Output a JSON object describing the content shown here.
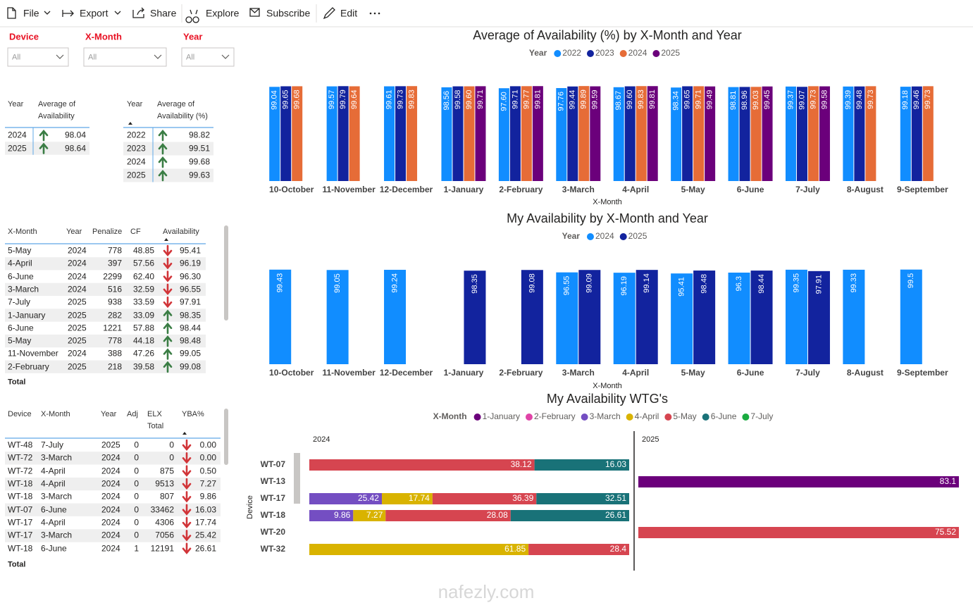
{
  "toolbar": {
    "items": [
      "File",
      "Export",
      "Share",
      "Explore",
      "Subscribe",
      "Edit"
    ]
  },
  "slicers": [
    {
      "label": "Device",
      "value": "All"
    },
    {
      "label": "X-Month",
      "value": "All"
    },
    {
      "label": "Year",
      "value": "All"
    }
  ],
  "tables": [
    {
      "columns": [
        "Year",
        "Average of Availability"
      ],
      "rows": [
        [
          "2024",
          "98.04"
        ],
        [
          "2025",
          "98.64"
        ]
      ],
      "arrows": [
        "up",
        "up"
      ]
    },
    {
      "columns": [
        "Year",
        "Average of Availability (%)"
      ],
      "rows": [
        [
          "2022",
          "98.82"
        ],
        [
          "2023",
          "99.51"
        ],
        [
          "2024",
          "99.68"
        ],
        [
          "2025",
          "99.63"
        ]
      ],
      "arrows": [
        "up",
        "up",
        "up",
        "up"
      ]
    },
    {
      "columns": [
        "X-Month",
        "Year",
        "Penalize",
        "CF",
        "Availability"
      ],
      "rows": [
        [
          "5-May",
          "2024",
          "778",
          "48.85",
          "95.41"
        ],
        [
          "4-April",
          "2024",
          "397",
          "57.56",
          "96.19"
        ],
        [
          "6-June",
          "2024",
          "2299",
          "62.40",
          "96.30"
        ],
        [
          "3-March",
          "2024",
          "516",
          "32.59",
          "96.55"
        ],
        [
          "7-July",
          "2025",
          "938",
          "33.59",
          "97.91"
        ],
        [
          "1-January",
          "2025",
          "282",
          "33.09",
          "98.35"
        ],
        [
          "6-June",
          "2025",
          "1221",
          "57.88",
          "98.44"
        ],
        [
          "5-May",
          "2025",
          "778",
          "44.18",
          "98.48"
        ],
        [
          "11-November",
          "2024",
          "388",
          "47.26",
          "99.05"
        ],
        [
          "2-February",
          "2025",
          "218",
          "39.58",
          "99.08"
        ]
      ],
      "arrows": [
        "down",
        "down",
        "down",
        "down",
        "down",
        "up",
        "up",
        "up",
        "up",
        "up"
      ],
      "total": "Total"
    },
    {
      "columns": [
        "Device",
        "X-Month",
        "Year",
        "Adj",
        "ELX Total",
        "YBA%"
      ],
      "rows": [
        [
          "WT-48",
          "7-July",
          "2025",
          "0",
          "0",
          "0.00"
        ],
        [
          "WT-72",
          "3-March",
          "2024",
          "0",
          "0",
          "0.00"
        ],
        [
          "WT-72",
          "4-April",
          "2024",
          "0",
          "875",
          "0.50"
        ],
        [
          "WT-18",
          "4-April",
          "2024",
          "0",
          "9513",
          "7.27"
        ],
        [
          "WT-18",
          "3-March",
          "2024",
          "0",
          "807",
          "9.86"
        ],
        [
          "WT-07",
          "6-June",
          "2024",
          "0",
          "33462",
          "16.03"
        ],
        [
          "WT-17",
          "4-April",
          "2024",
          "0",
          "4306",
          "17.74"
        ],
        [
          "WT-17",
          "3-March",
          "2024",
          "0",
          "7056",
          "25.42"
        ],
        [
          "WT-18",
          "6-June",
          "2024",
          "1",
          "12191",
          "26.61"
        ]
      ],
      "arrows": [
        "down",
        "down",
        "down",
        "down",
        "down",
        "down",
        "down",
        "down",
        "down"
      ],
      "total": "Total"
    }
  ],
  "charts": [
    {
      "type": "bar",
      "title": "Average of Availability (%) by X-Month and Year",
      "legend_title": "Year",
      "x_label": "X-Month",
      "categories": [
        "10-October",
        "11-November",
        "12-December",
        "1-January",
        "2-February",
        "3-March",
        "4-April",
        "5-May",
        "6-June",
        "7-July",
        "8-August",
        "9-September"
      ],
      "ylim": [
        0,
        100
      ],
      "series": [
        {
          "name": "2022",
          "color": "#118DFF",
          "values": [
            99.04,
            99.57,
            99.61,
            98.56,
            97.6,
            97.76,
            98.67,
            98.34,
            98.81,
            99.37,
            99.39,
            99.18
          ],
          "value_labels": [
            "99.04",
            "99.57",
            "99.61",
            "98.56",
            "97.60",
            "97.76",
            "98.67",
            "98.34",
            "98.81",
            "99.37",
            "99.39",
            "99.18"
          ]
        },
        {
          "name": "2023",
          "color": "#12239E",
          "values": [
            99.65,
            99.79,
            99.73,
            99.58,
            99.71,
            99.44,
            99.6,
            99.65,
            98.96,
            99.07,
            99.48,
            99.46
          ],
          "value_labels": [
            "99.65",
            "99.79",
            "99.73",
            "99.58",
            "99.71",
            "99.44",
            "99.60",
            "99.65",
            "98.96",
            "99.07",
            "99.48",
            "99.46"
          ]
        },
        {
          "name": "2024",
          "color": "#E66C37",
          "values": [
            99.68,
            99.64,
            99.83,
            99.6,
            99.77,
            99.89,
            99.83,
            99.71,
            99.03,
            99.73,
            99.73,
            99.73
          ],
          "value_labels": [
            "99.68",
            "99.64",
            "99.83",
            "99.60",
            "99.77",
            "99.89",
            "99.83",
            "99.71",
            "99.03",
            "99.73",
            "99.73",
            "99.73"
          ]
        },
        {
          "name": "2025",
          "color": "#6B007B",
          "values": [
            null,
            null,
            null,
            99.71,
            99.81,
            99.59,
            99.81,
            99.49,
            99.45,
            99.58,
            null,
            null
          ]
        }
      ]
    },
    {
      "type": "bar",
      "title": "My Availability by X-Month and Year",
      "legend_title": "Year",
      "x_label": "X-Month",
      "categories": [
        "10-October",
        "11-November",
        "12-December",
        "1-January",
        "2-February",
        "3-March",
        "4-April",
        "5-May",
        "6-June",
        "7-July",
        "8-August",
        "9-September"
      ],
      "ylim": [
        0,
        100
      ],
      "series": [
        {
          "name": "2024",
          "color": "#118DFF",
          "values": [
            99.43,
            99.05,
            99.24,
            null,
            null,
            96.55,
            96.19,
            95.41,
            96.3,
            99.35,
            99.33,
            99.5
          ]
        },
        {
          "name": "2025",
          "color": "#12239E",
          "values": [
            null,
            null,
            null,
            98.35,
            99.08,
            99.09,
            99.14,
            98.48,
            98.44,
            97.91,
            null,
            null
          ]
        }
      ]
    },
    {
      "type": "bar",
      "orientation": "horizontal",
      "stacking": "percent",
      "title": "My Availability WTG's",
      "legend_title": "X-Month",
      "y_label": "Device",
      "categories": [
        "WT-07",
        "WT-13",
        "WT-17",
        "WT-18",
        "WT-20",
        "WT-32"
      ],
      "series": [
        {
          "name": "1-January",
          "color": "#6B007B"
        },
        {
          "name": "2-February",
          "color": "#E044A7"
        },
        {
          "name": "3-March",
          "color": "#744EC2"
        },
        {
          "name": "4-April",
          "color": "#D9B300"
        },
        {
          "name": "5-May",
          "color": "#D64550"
        },
        {
          "name": "6-June",
          "color": "#197278"
        },
        {
          "name": "7-July",
          "color": "#1AAB40"
        }
      ],
      "panels": [
        {
          "title": "2024",
          "values": [
            [
              null,
              null,
              null,
              null,
              null,
              null
            ],
            [
              null,
              null,
              null,
              null,
              null,
              null
            ],
            [
              null,
              null,
              25.42,
              9.86,
              null,
              null
            ],
            [
              null,
              null,
              17.74,
              7.27,
              null,
              61.85
            ],
            [
              38.12,
              null,
              36.39,
              28.08,
              null,
              28.4
            ],
            [
              16.03,
              null,
              32.51,
              26.61,
              null,
              null
            ],
            [
              null,
              null,
              null,
              null,
              null,
              null
            ]
          ]
        },
        {
          "title": "2025",
          "values": [
            [
              null,
              83.1,
              null,
              null,
              null,
              null
            ],
            [
              null,
              null,
              null,
              null,
              null,
              null
            ],
            [
              null,
              null,
              null,
              null,
              null,
              null
            ],
            [
              null,
              null,
              null,
              null,
              null,
              null
            ],
            [
              null,
              null,
              null,
              null,
              75.52,
              null
            ],
            [
              null,
              null,
              null,
              null,
              null,
              null
            ],
            [
              null,
              null,
              null,
              null,
              null,
              null
            ]
          ]
        }
      ]
    }
  ],
  "watermark": "nafezly.com"
}
